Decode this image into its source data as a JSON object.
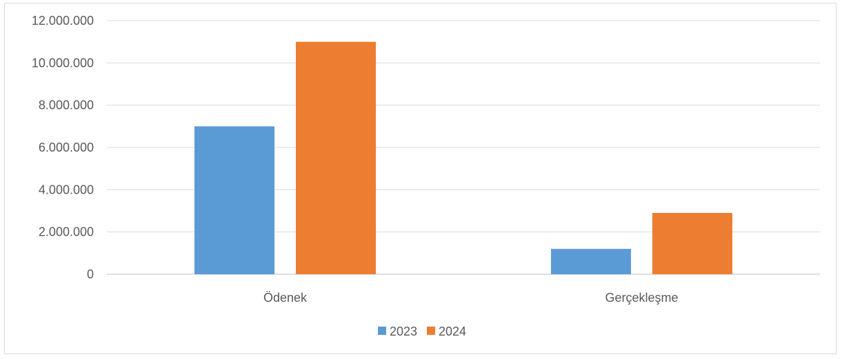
{
  "chart_data": {
    "type": "bar",
    "categories": [
      "Ödenek",
      "Gerçekleşme"
    ],
    "series": [
      {
        "name": "2023",
        "values": [
          7000000,
          1200000
        ],
        "color": "#5b9bd5"
      },
      {
        "name": "2024",
        "values": [
          11000000,
          2900000
        ],
        "color": "#ed7d31"
      }
    ],
    "yticks": [
      "0",
      "2.000.000",
      "4.000.000",
      "6.000.000",
      "8.000.000",
      "10.000.000",
      "12.000.000"
    ],
    "ylim": [
      0,
      12000000
    ],
    "grid": true,
    "legend_position": "bottom",
    "title": "",
    "xlabel": "",
    "ylabel": ""
  }
}
